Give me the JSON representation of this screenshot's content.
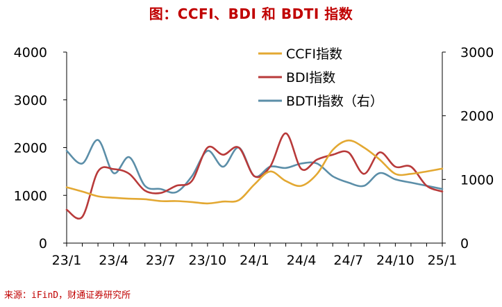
{
  "title": "图：CCFI、BDI 和 BDTI 指数",
  "source": "来源：iFinD，财通证券研究所",
  "colors": {
    "ccfi": "#E3A832",
    "bdi": "#B83A3A",
    "bdti": "#5B8EA8",
    "title": "#c00000"
  },
  "chart_data": {
    "type": "line",
    "title": "图：CCFI、BDI 和 BDTI 指数",
    "x": [
      "23/1",
      "23/2",
      "23/3",
      "23/4",
      "23/5",
      "23/6",
      "23/7",
      "23/8",
      "23/9",
      "23/10",
      "23/11",
      "23/12",
      "24/1",
      "24/2",
      "24/3",
      "24/4",
      "24/5",
      "24/6",
      "24/7",
      "24/8",
      "24/9",
      "24/10",
      "24/11",
      "24/12",
      "25/1"
    ],
    "xticks": [
      "23/1",
      "23/4",
      "23/7",
      "23/10",
      "24/1",
      "24/4",
      "24/7",
      "24/10",
      "25/1"
    ],
    "ylim_left": [
      0,
      4000
    ],
    "yticks_left": [
      "0",
      "1000",
      "2000",
      "3000",
      "4000"
    ],
    "ylim_right": [
      0,
      3000
    ],
    "yticks_right": [
      "0",
      "1000",
      "2000",
      "3000"
    ],
    "legend_position": "top-right",
    "series": [
      {
        "name": "CCFI指数",
        "axis": "left",
        "color": "#E3A832",
        "values": [
          1170,
          1080,
          980,
          950,
          930,
          920,
          880,
          880,
          860,
          830,
          870,
          900,
          1230,
          1500,
          1300,
          1200,
          1450,
          1950,
          2150,
          2000,
          1750,
          1450,
          1450,
          1500,
          1560
        ]
      },
      {
        "name": "BDI指数",
        "axis": "left",
        "color": "#B83A3A",
        "values": [
          700,
          550,
          1500,
          1550,
          1450,
          1100,
          1050,
          1200,
          1300,
          2000,
          1850,
          2000,
          1400,
          1600,
          2300,
          1550,
          1750,
          1850,
          1900,
          1450,
          1900,
          1600,
          1600,
          1200,
          1080
        ]
      },
      {
        "name": "BDTI指数（右）",
        "axis": "right",
        "color": "#5B8EA8",
        "values": [
          1450,
          1250,
          1620,
          1100,
          1350,
          900,
          850,
          800,
          1050,
          1450,
          1200,
          1500,
          1050,
          1200,
          1180,
          1250,
          1250,
          1050,
          950,
          900,
          1100,
          1000,
          950,
          900,
          850
        ]
      }
    ]
  }
}
